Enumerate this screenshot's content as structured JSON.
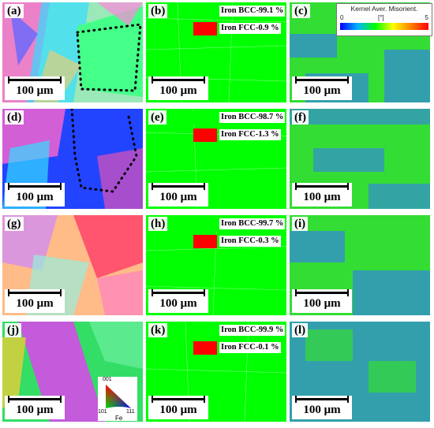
{
  "panels": [
    {
      "id": "a",
      "label": "(a)",
      "scale": "100 μm",
      "type": "ipf"
    },
    {
      "id": "b",
      "label": "(b)",
      "scale": "100 μm",
      "type": "phase",
      "bcc": "Iron BCC-99.1 %",
      "fcc": "Iron FCC-0.9 %"
    },
    {
      "id": "c",
      "label": "(c)",
      "scale": "100 μm",
      "type": "kam"
    },
    {
      "id": "d",
      "label": "(d)",
      "scale": "100 μm",
      "type": "ipf"
    },
    {
      "id": "e",
      "label": "(e)",
      "scale": "100 μm",
      "type": "phase",
      "bcc": "Iron BCC-98.7 %",
      "fcc": "Iron FCC-1.3 %"
    },
    {
      "id": "f",
      "label": "(f)",
      "scale": "100 μm",
      "type": "kam"
    },
    {
      "id": "g",
      "label": "(g)",
      "scale": "100 μm",
      "type": "ipf"
    },
    {
      "id": "h",
      "label": "(h)",
      "scale": "100 μm",
      "type": "phase",
      "bcc": "Iron BCC-99.7 %",
      "fcc": "Iron FCC-0.3 %"
    },
    {
      "id": "i",
      "label": "(i)",
      "scale": "100 μm",
      "type": "kam"
    },
    {
      "id": "j",
      "label": "(j)",
      "scale": "100 μm",
      "type": "ipf"
    },
    {
      "id": "k",
      "label": "(k)",
      "scale": "100 μm",
      "type": "phase",
      "bcc": "Iron BCC-99.9 %",
      "fcc": "Iron FCC-0.1 %"
    },
    {
      "id": "l",
      "label": "(l)",
      "scale": "100 μm",
      "type": "kam"
    }
  ],
  "kam_legend": {
    "title": "Kernel Aver. Misorient.",
    "min": "0",
    "unit": "[°]",
    "max": "5"
  },
  "ipf_legend": {
    "top": "001",
    "left": "101",
    "right": "111",
    "element": "Fe"
  },
  "colors": {
    "bcc": "#00ff00",
    "fcc": "#ff0000"
  }
}
